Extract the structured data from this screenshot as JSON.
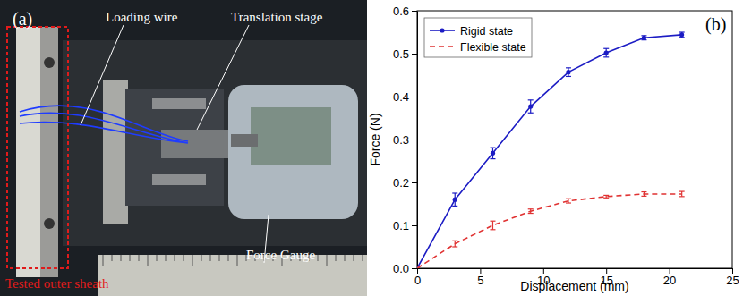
{
  "chart_data": {
    "type": "line",
    "annotations": [
      "(b)"
    ],
    "x_label": "Displacement (mm)",
    "y_label": "Force (N)",
    "x": [
      0,
      3,
      6,
      9,
      12,
      15,
      18,
      21
    ],
    "series": [
      {
        "name": "Rigid state",
        "color": "#1c1cc4",
        "marker": "circle",
        "line_style": "solid",
        "values": [
          0,
          0.16,
          0.268,
          0.377,
          0.457,
          0.502,
          0.537,
          0.544
        ],
        "errors": [
          0,
          0.015,
          0.013,
          0.015,
          0.01,
          0.01,
          0.005,
          0.006
        ]
      },
      {
        "name": "Flexible state",
        "color": "#e03232",
        "marker": "none",
        "line_style": "dashed",
        "values": [
          0,
          0.057,
          0.1,
          0.133,
          0.157,
          0.167,
          0.173,
          0.173
        ],
        "errors": [
          0,
          0.007,
          0.01,
          0.005,
          0.005,
          0.003,
          0.005,
          0.006
        ]
      }
    ],
    "xlim": [
      0,
      25
    ],
    "xticks": [
      0,
      5,
      10,
      15,
      20,
      25
    ],
    "ylim": [
      0,
      0.6
    ],
    "yticks": [
      {
        "value": 0,
        "label": "0.0"
      },
      0.1,
      0.2,
      0.3,
      0.4,
      0.5,
      0.6
    ],
    "legend": "upper left",
    "grid": false
  },
  "photo": {
    "panel_label": "(a)",
    "labels": [
      "Loading wire",
      "Translation stage",
      "Force Gauge"
    ],
    "highlight_label": "Tested outer sheath"
  }
}
